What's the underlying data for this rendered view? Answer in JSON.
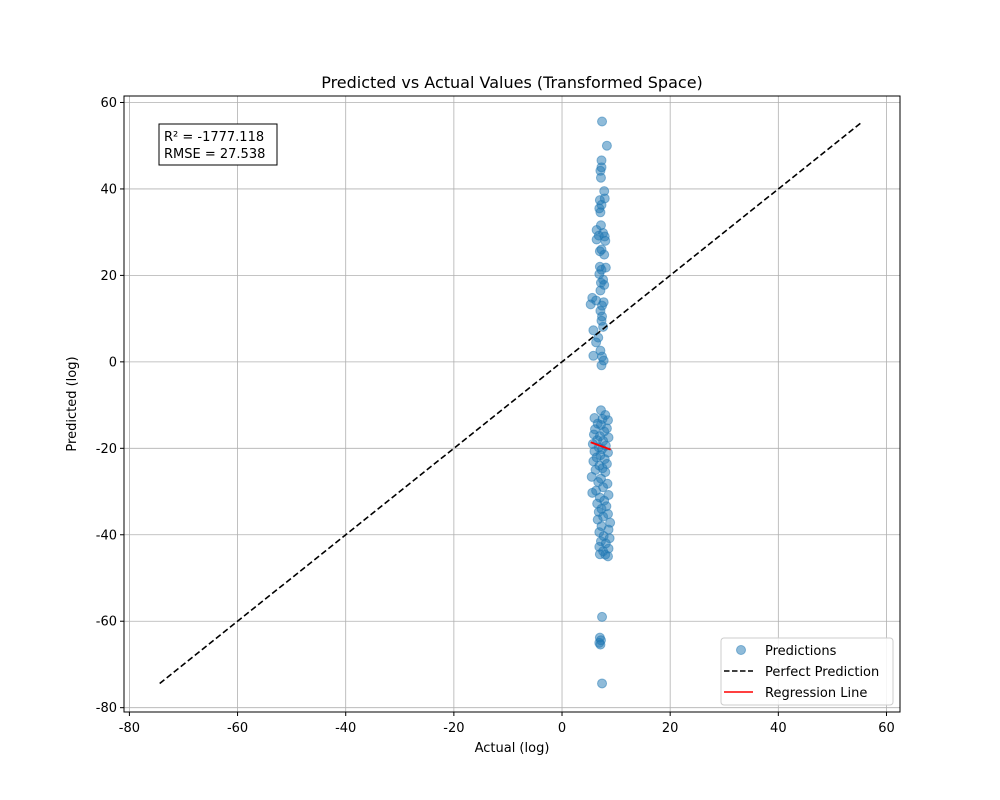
{
  "chart_data": {
    "type": "scatter",
    "title": "Predicted vs Actual Values (Transformed Space)",
    "xlabel": "Actual (log)",
    "ylabel": "Predicted (log)",
    "xlim": [
      -81,
      62.5
    ],
    "ylim": [
      -81,
      61.5
    ],
    "xticks": [
      -80,
      -60,
      -40,
      -20,
      0,
      20,
      40,
      60
    ],
    "yticks": [
      -80,
      -60,
      -40,
      -20,
      0,
      20,
      40,
      60
    ],
    "grid": true,
    "legend_position": "bottom-right",
    "annotation": [
      "R² = -1777.118",
      "RMSE = 27.538"
    ],
    "series": [
      {
        "name": "Predictions",
        "kind": "scatter",
        "color": "#1f77b4",
        "points": [
          [
            7.4,
            55.6
          ],
          [
            8.3,
            50.0
          ],
          [
            7.3,
            46.6
          ],
          [
            7.3,
            45.0
          ],
          [
            7.1,
            44.2
          ],
          [
            7.2,
            42.6
          ],
          [
            7.8,
            39.5
          ],
          [
            7.9,
            37.8
          ],
          [
            7.0,
            37.4
          ],
          [
            7.3,
            36.3
          ],
          [
            6.9,
            35.5
          ],
          [
            7.1,
            34.6
          ],
          [
            7.2,
            31.6
          ],
          [
            6.4,
            30.5
          ],
          [
            7.6,
            29.8
          ],
          [
            6.8,
            29.2
          ],
          [
            7.9,
            29.0
          ],
          [
            6.4,
            28.3
          ],
          [
            8.0,
            28.0
          ],
          [
            7.3,
            26.0
          ],
          [
            7.0,
            25.6
          ],
          [
            7.8,
            24.8
          ],
          [
            7.0,
            22.0
          ],
          [
            8.1,
            21.8
          ],
          [
            7.3,
            21.3
          ],
          [
            6.9,
            20.3
          ],
          [
            7.6,
            19.0
          ],
          [
            7.2,
            18.3
          ],
          [
            7.8,
            17.8
          ],
          [
            7.1,
            16.5
          ],
          [
            5.6,
            14.8
          ],
          [
            6.3,
            14.2
          ],
          [
            7.7,
            13.8
          ],
          [
            5.3,
            13.3
          ],
          [
            7.4,
            13.0
          ],
          [
            7.1,
            11.8
          ],
          [
            7.4,
            10.5
          ],
          [
            7.3,
            9.5
          ],
          [
            7.6,
            8.1
          ],
          [
            5.8,
            7.3
          ],
          [
            6.7,
            5.6
          ],
          [
            6.3,
            4.5
          ],
          [
            7.1,
            2.6
          ],
          [
            5.8,
            1.4
          ],
          [
            7.4,
            1.2
          ],
          [
            7.7,
            0.3
          ],
          [
            7.3,
            -0.8
          ],
          [
            7.2,
            -11.2
          ],
          [
            8.0,
            -12.3
          ],
          [
            6.0,
            -13.0
          ],
          [
            7.5,
            -13.2
          ],
          [
            8.5,
            -13.5
          ],
          [
            6.6,
            -14.3
          ],
          [
            7.2,
            -14.6
          ],
          [
            8.3,
            -15.4
          ],
          [
            6.1,
            -15.6
          ],
          [
            7.8,
            -16.1
          ],
          [
            5.9,
            -16.8
          ],
          [
            7.0,
            -17.2
          ],
          [
            8.6,
            -17.5
          ],
          [
            6.5,
            -18.1
          ],
          [
            7.6,
            -18.3
          ],
          [
            5.7,
            -19.0
          ],
          [
            8.1,
            -19.4
          ],
          [
            6.8,
            -19.8
          ],
          [
            7.4,
            -20.2
          ],
          [
            6.0,
            -20.7
          ],
          [
            8.5,
            -21.0
          ],
          [
            7.1,
            -21.6
          ],
          [
            6.4,
            -22.1
          ],
          [
            7.9,
            -22.5
          ],
          [
            5.8,
            -23.0
          ],
          [
            8.3,
            -23.6
          ],
          [
            6.9,
            -24.0
          ],
          [
            7.5,
            -24.6
          ],
          [
            6.2,
            -25.0
          ],
          [
            8.0,
            -25.5
          ],
          [
            5.5,
            -26.6
          ],
          [
            7.2,
            -27.0
          ],
          [
            6.7,
            -27.8
          ],
          [
            8.4,
            -28.2
          ],
          [
            7.6,
            -29.0
          ],
          [
            6.3,
            -29.8
          ],
          [
            5.6,
            -30.3
          ],
          [
            8.6,
            -30.8
          ],
          [
            7.0,
            -31.4
          ],
          [
            7.8,
            -32.1
          ],
          [
            6.5,
            -32.8
          ],
          [
            8.2,
            -33.4
          ],
          [
            7.3,
            -34.0
          ],
          [
            6.8,
            -34.7
          ],
          [
            8.5,
            -35.2
          ],
          [
            7.6,
            -35.8
          ],
          [
            6.6,
            -36.5
          ],
          [
            8.9,
            -37.2
          ],
          [
            7.3,
            -38.0
          ],
          [
            8.6,
            -38.8
          ],
          [
            6.9,
            -39.4
          ],
          [
            7.7,
            -40.3
          ],
          [
            8.8,
            -40.8
          ],
          [
            7.2,
            -41.5
          ],
          [
            8.1,
            -42.0
          ],
          [
            6.9,
            -42.8
          ],
          [
            8.6,
            -43.2
          ],
          [
            7.6,
            -43.8
          ],
          [
            7.0,
            -44.5
          ],
          [
            8.0,
            -44.6
          ],
          [
            8.5,
            -45.0
          ],
          [
            7.4,
            -59.0
          ],
          [
            7.0,
            -63.8
          ],
          [
            7.2,
            -64.4
          ],
          [
            6.9,
            -65.0
          ],
          [
            7.1,
            -65.4
          ],
          [
            7.4,
            -74.4
          ]
        ]
      },
      {
        "name": "Perfect Prediction",
        "kind": "line",
        "style": "dashed",
        "color": "#000000",
        "x": [
          -74.4,
          55.6
        ],
        "y": [
          -74.4,
          55.6
        ]
      },
      {
        "name": "Regression Line",
        "kind": "line",
        "style": "solid",
        "color": "#ff0000",
        "x": [
          5.3,
          9.0
        ],
        "y": [
          -18.6,
          -20.3
        ]
      }
    ]
  }
}
